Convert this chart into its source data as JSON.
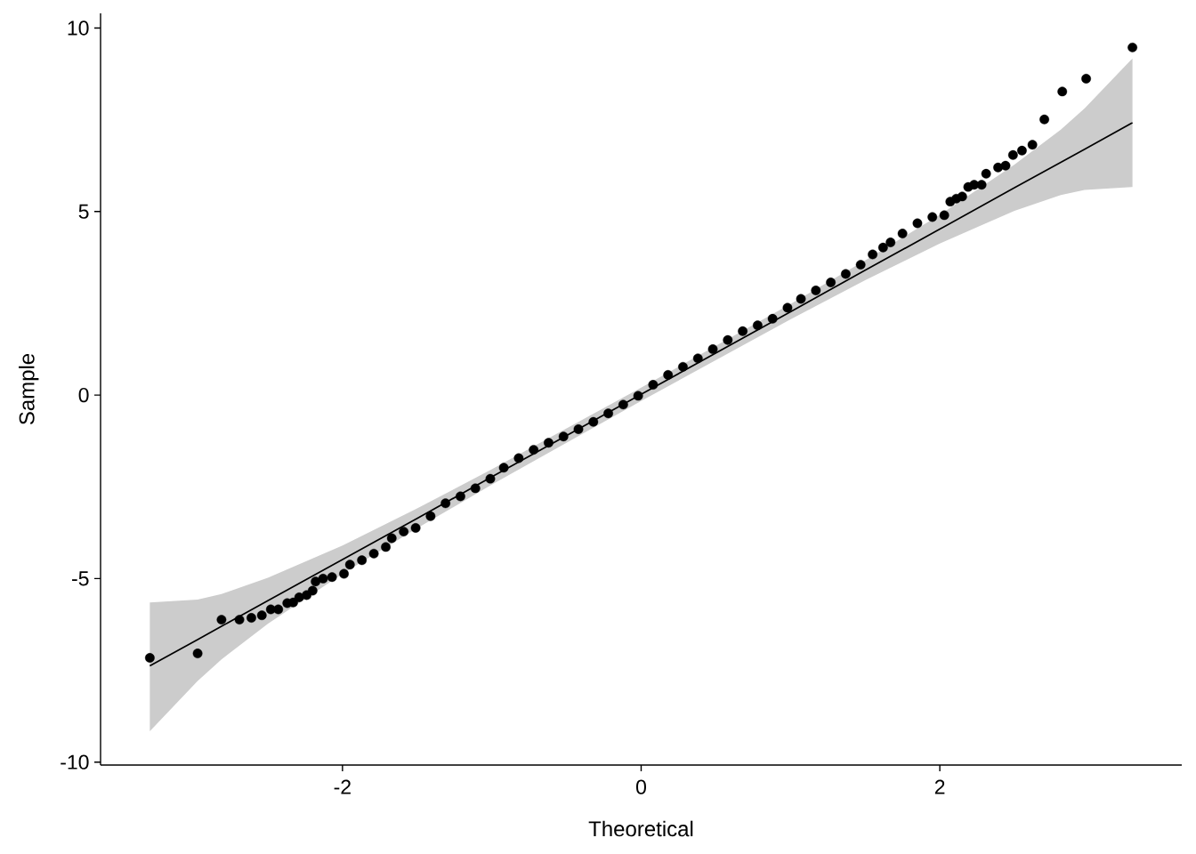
{
  "chart_data": {
    "type": "scatter",
    "xlabel": "Theoretical",
    "ylabel": "Sample",
    "xlim": [
      -3.62,
      3.62
    ],
    "ylim": [
      -10.08,
      10.4
    ],
    "xticks": [
      -2,
      0,
      2
    ],
    "yticks": [
      -10,
      -5,
      0,
      5,
      10
    ],
    "series": [
      {
        "type": "line",
        "color": "#000000",
        "x": [
          -3.29,
          -2.97,
          -2.81,
          -2.5,
          -2,
          -1.5,
          -1,
          0,
          1,
          1.5,
          2,
          2.5,
          2.81,
          2.97,
          3.29
        ],
        "values": [
          -7.38,
          -6.66,
          -6.3,
          -5.6,
          -4.48,
          -3.36,
          -2.23,
          0.02,
          2.27,
          3.4,
          4.52,
          5.65,
          6.34,
          6.7,
          7.42
        ],
        "upper": [
          -5.65,
          -5.57,
          -5.42,
          -4.98,
          -4.1,
          -3.09,
          -2.02,
          0.2,
          2.48,
          3.67,
          4.91,
          6.28,
          7.23,
          7.81,
          9.17
        ],
        "lower": [
          -9.16,
          -7.79,
          -7.2,
          -6.23,
          -4.87,
          -3.63,
          -2.44,
          -0.16,
          2.06,
          3.13,
          4.13,
          5.02,
          5.45,
          5.59,
          5.67
        ]
      },
      {
        "color": "#000000",
        "marker": "circle",
        "x": [
          -3.29,
          -2.97,
          -2.81,
          -2.69,
          -2.61,
          -2.54,
          -2.48,
          -2.43,
          -2.37,
          -2.33,
          -2.29,
          -2.24,
          -2.2,
          -2.18,
          -2.13,
          -2.07,
          -1.99,
          -1.95,
          -1.87,
          -1.79,
          -1.71,
          -1.67,
          -1.59,
          -1.51,
          -1.41,
          -1.31,
          -1.21,
          -1.11,
          -1.01,
          -0.92,
          -0.82,
          -0.72,
          -0.62,
          -0.52,
          -0.42,
          -0.32,
          -0.22,
          -0.12,
          -0.02,
          0.08,
          0.18,
          0.28,
          0.38,
          0.48,
          0.58,
          0.68,
          0.78,
          0.88,
          0.98,
          1.07,
          1.17,
          1.27,
          1.37,
          1.47,
          1.55,
          1.62,
          1.67,
          1.75,
          1.85,
          1.95,
          2.03,
          2.07,
          2.11,
          2.15,
          2.19,
          2.23,
          2.28,
          2.31,
          2.39,
          2.44,
          2.49,
          2.55,
          2.62,
          2.7,
          2.82,
          2.98,
          3.29
        ],
        "values": [
          -7.16,
          -7.04,
          -6.12,
          -6.12,
          -6.07,
          -6.0,
          -5.84,
          -5.84,
          -5.67,
          -5.65,
          -5.51,
          -5.45,
          -5.33,
          -5.08,
          -5.0,
          -4.96,
          -4.87,
          -4.62,
          -4.5,
          -4.32,
          -4.14,
          -3.9,
          -3.72,
          -3.62,
          -3.3,
          -2.95,
          -2.76,
          -2.54,
          -2.28,
          -1.98,
          -1.72,
          -1.49,
          -1.3,
          -1.13,
          -0.93,
          -0.73,
          -0.5,
          -0.26,
          -0.02,
          0.28,
          0.55,
          0.77,
          1.0,
          1.25,
          1.5,
          1.74,
          1.9,
          2.08,
          2.38,
          2.62,
          2.85,
          3.07,
          3.3,
          3.55,
          3.83,
          4.02,
          4.16,
          4.4,
          4.68,
          4.85,
          4.9,
          5.27,
          5.35,
          5.41,
          5.67,
          5.73,
          5.73,
          6.03,
          6.2,
          6.25,
          6.54,
          6.66,
          6.82,
          7.51,
          8.27,
          8.62,
          9.47
        ]
      }
    ]
  }
}
